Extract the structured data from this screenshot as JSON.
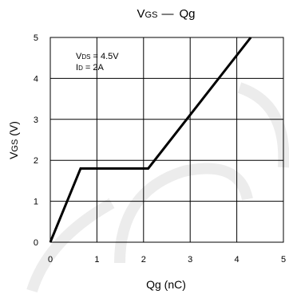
{
  "chart_data": {
    "type": "line",
    "title": {
      "v_prefix": "V",
      "v_sub": "GS",
      "dash": "—",
      "q": "Qg"
    },
    "xlabel": "Qg (nC)",
    "ylabel": {
      "v_prefix": "V",
      "v_sub": "GS",
      "units": " (V)"
    },
    "xlim": [
      0,
      5
    ],
    "ylim": [
      0,
      5
    ],
    "xticks": [
      "0",
      "1",
      "2",
      "3",
      "4",
      "5"
    ],
    "yticks": [
      "0",
      "1",
      "2",
      "3",
      "4",
      "5"
    ],
    "grid": true,
    "annotations": [
      {
        "prefix": "V",
        "sub": "DS",
        "rest": " = 4.5V"
      },
      {
        "prefix": "I",
        "sub": "D",
        "rest": " = 2A"
      }
    ],
    "series": [
      {
        "x": [
          0,
          0.65,
          2.1,
          4.3
        ],
        "y": [
          0,
          1.8,
          1.8,
          5.0
        ]
      }
    ],
    "line_color": "#000000",
    "grid_color": "#000000",
    "watermark_color": "#ececec"
  }
}
